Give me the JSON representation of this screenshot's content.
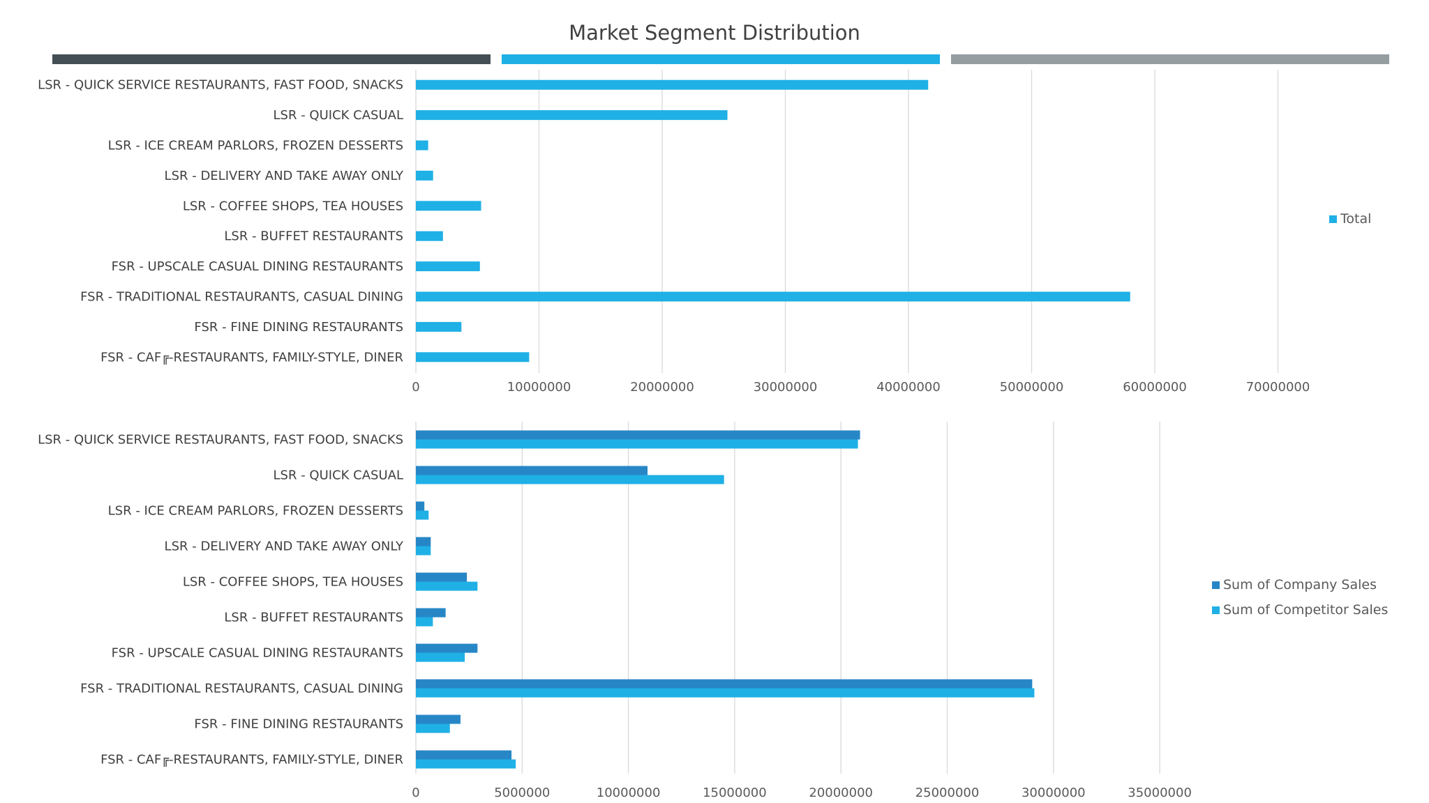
{
  "title": "Market Segment Distribution",
  "colors": {
    "strip1": "#434f55",
    "strip2": "#1fb0e6",
    "strip3": "#959da1",
    "total": "#1fb0e6",
    "company": "#2787c6",
    "competitor": "#1fb0e6",
    "grid": "#d9d9d9"
  },
  "chart_data": [
    {
      "type": "bar",
      "orientation": "horizontal",
      "categories": [
        "LSR - QUICK SERVICE RESTAURANTS, FAST FOOD, SNACKS",
        "LSR - QUICK CASUAL",
        "LSR - ICE CREAM PARLORS, FROZEN DESSERTS",
        "LSR - DELIVERY AND TAKE AWAY ONLY",
        "LSR - COFFEE SHOPS, TEA HOUSES",
        "LSR - BUFFET RESTAURANTS",
        "FSR - UPSCALE CASUAL DINING RESTAURANTS",
        "FSR - TRADITIONAL RESTAURANTS, CASUAL DINING",
        "FSR - FINE DINING RESTAURANTS",
        "FSR - CAF╔-RESTAURANTS, FAMILY-STYLE, DINER"
      ],
      "series": [
        {
          "name": "Total",
          "values": [
            41600000,
            25300000,
            1000000,
            1400000,
            5300000,
            2200000,
            5200000,
            58000000,
            3700000,
            9200000
          ]
        }
      ],
      "xlim": [
        0,
        80000000
      ],
      "xticks": [
        "0",
        "10000000",
        "20000000",
        "30000000",
        "40000000",
        "50000000",
        "60000000",
        "70000000"
      ],
      "grid": true,
      "legend": "right"
    },
    {
      "type": "bar",
      "orientation": "horizontal",
      "categories": [
        "LSR - QUICK SERVICE RESTAURANTS, FAST FOOD, SNACKS",
        "LSR - QUICK CASUAL",
        "LSR - ICE CREAM PARLORS, FROZEN DESSERTS",
        "LSR - DELIVERY AND TAKE AWAY ONLY",
        "LSR - COFFEE SHOPS, TEA HOUSES",
        "LSR - BUFFET RESTAURANTS",
        "FSR - UPSCALE CASUAL DINING RESTAURANTS",
        "FSR - TRADITIONAL RESTAURANTS, CASUAL DINING",
        "FSR - FINE DINING RESTAURANTS",
        "FSR - CAF╔-RESTAURANTS, FAMILY-STYLE, DINER"
      ],
      "series": [
        {
          "name": "Sum of Company Sales",
          "values": [
            20900000,
            10900000,
            400000,
            700000,
            2400000,
            1400000,
            2900000,
            29000000,
            2100000,
            4500000
          ]
        },
        {
          "name": "Sum of Competitor Sales",
          "values": [
            20800000,
            14500000,
            600000,
            700000,
            2900000,
            800000,
            2300000,
            29100000,
            1600000,
            4700000
          ]
        }
      ],
      "xlim": [
        0,
        40000000
      ],
      "xticks": [
        "0",
        "5000000",
        "10000000",
        "15000000",
        "20000000",
        "25000000",
        "30000000",
        "35000000"
      ],
      "grid": true,
      "legend": "right"
    }
  ]
}
